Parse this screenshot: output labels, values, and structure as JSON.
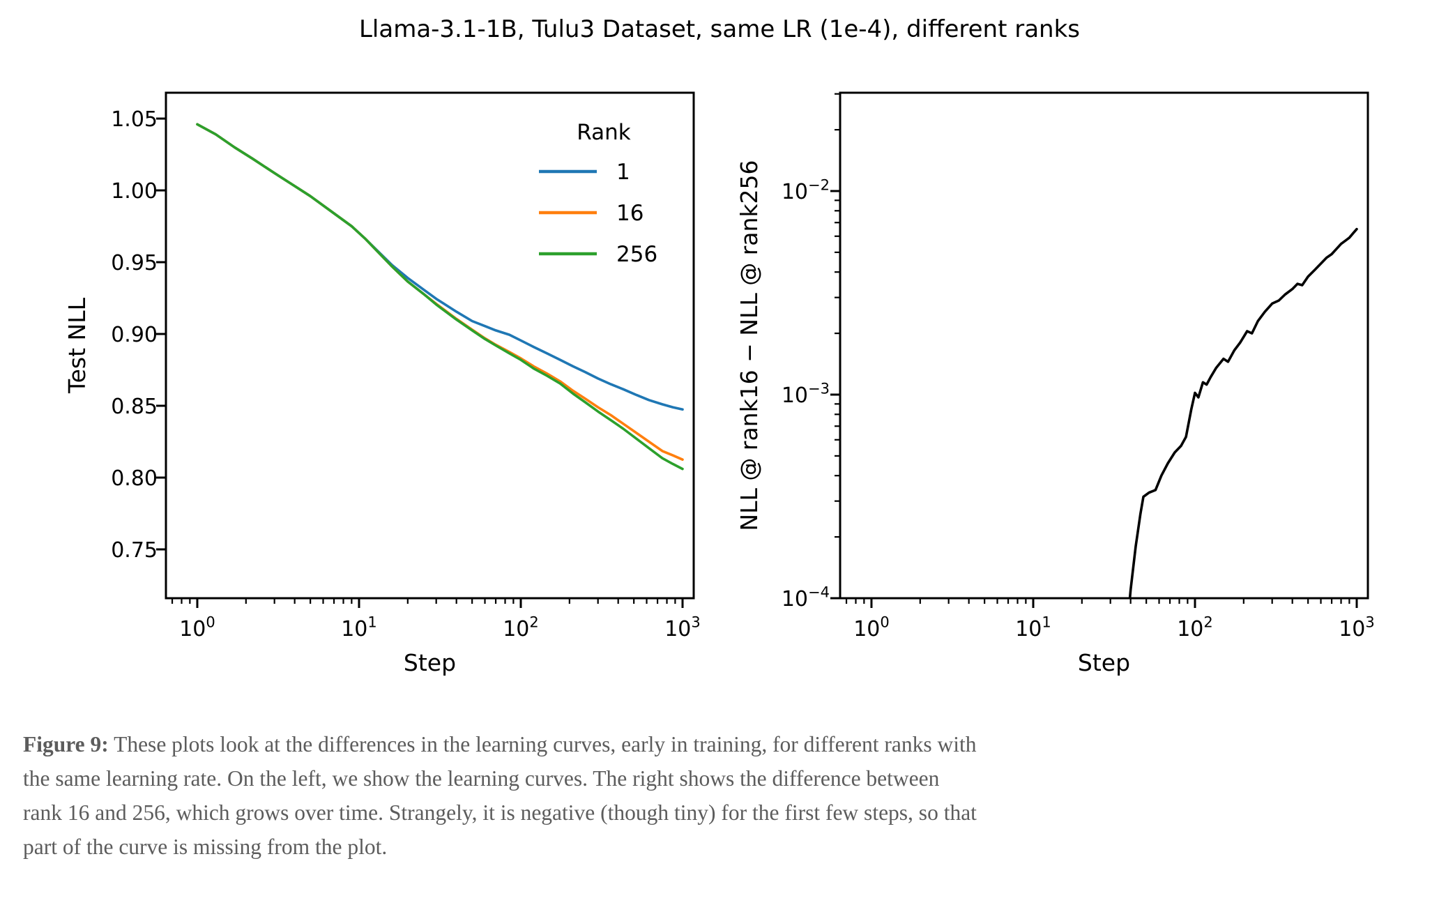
{
  "figure": {
    "title": "Llama-3.1-1B, Tulu3 Dataset, same LR (1e-4), different ranks",
    "caption": {
      "label": "Figure 9:",
      "lines": [
        "These plots look at the differences in the learning curves, early in training, for different ranks with",
        "the same learning rate. On the left, we show the learning curves. The right shows the difference between",
        "rank 16 and 256, which grows over time. Strangely, it is negative (though tiny) for the first few steps, so that",
        "part of the curve is missing from the plot."
      ]
    }
  },
  "colors": {
    "rank1": "#1f77b4",
    "rank16": "#ff7f0e",
    "rank256": "#2ca02c",
    "diff": "#000000",
    "axes": "#000000",
    "caption_text": "#5c5c5c"
  },
  "chart_data": [
    {
      "type": "line",
      "panel": "left",
      "xlabel": "Step",
      "ylabel": "Test NLL",
      "xscale": "log",
      "yscale": "linear",
      "xlim": [
        0.64,
        1172
      ],
      "ylim": [
        0.716,
        1.068
      ],
      "grid": false,
      "xticks": {
        "values": [
          1,
          10,
          100,
          1000
        ],
        "labels": [
          "10^0",
          "10^1",
          "10^2",
          "10^3"
        ]
      },
      "yticks": {
        "values": [
          1.05,
          1.0,
          0.95,
          0.9,
          0.85,
          0.8,
          0.75
        ],
        "labels": [
          "1.05",
          "1.00",
          "0.95",
          "0.90",
          "0.85",
          "0.80",
          "0.75"
        ]
      },
      "legend": {
        "title": "Rank",
        "position": "upper right",
        "entries": [
          "1",
          "16",
          "256"
        ]
      },
      "series": [
        {
          "name": "1",
          "color_key": "rank1",
          "x": [
            1,
            1.3,
            1.7,
            2.2,
            3,
            4,
            5,
            7,
            9,
            11,
            13,
            16,
            20,
            25,
            30,
            40,
            50,
            60,
            70,
            85,
            100,
            120,
            145,
            175,
            210,
            250,
            300,
            360,
            430,
            520,
            620,
            750,
            870,
            1000
          ],
          "y": [
            1.046,
            1.039,
            1.03,
            1.022,
            1.012,
            1.003,
            0.996,
            0.984,
            0.975,
            0.966,
            0.958,
            0.948,
            0.939,
            0.931,
            0.9245,
            0.9155,
            0.909,
            0.9055,
            0.9025,
            0.8995,
            0.8955,
            0.891,
            0.8865,
            0.882,
            0.8775,
            0.8735,
            0.869,
            0.865,
            0.8615,
            0.8575,
            0.854,
            0.851,
            0.849,
            0.8475
          ]
        },
        {
          "name": "16",
          "color_key": "rank16",
          "x": [
            1,
            1.3,
            1.7,
            2.2,
            3,
            4,
            5,
            7,
            9,
            11,
            13,
            16,
            20,
            25,
            30,
            40,
            50,
            60,
            70,
            85,
            100,
            120,
            145,
            175,
            210,
            250,
            300,
            360,
            430,
            520,
            620,
            750,
            870,
            1000
          ],
          "y": [
            1.046,
            1.039,
            1.03,
            1.022,
            1.012,
            1.003,
            0.996,
            0.984,
            0.975,
            0.966,
            0.9575,
            0.947,
            0.9365,
            0.928,
            0.921,
            0.9105,
            0.903,
            0.897,
            0.8925,
            0.8875,
            0.883,
            0.8775,
            0.8725,
            0.867,
            0.8605,
            0.855,
            0.849,
            0.8435,
            0.8375,
            0.831,
            0.825,
            0.8185,
            0.8155,
            0.8125
          ]
        },
        {
          "name": "256",
          "color_key": "rank256",
          "x": [
            1,
            1.3,
            1.7,
            2.2,
            3,
            4,
            5,
            7,
            9,
            11,
            13,
            16,
            20,
            25,
            30,
            40,
            50,
            60,
            70,
            85,
            100,
            120,
            145,
            175,
            210,
            250,
            300,
            360,
            430,
            520,
            620,
            750,
            870,
            1000
          ],
          "y": [
            1.046,
            1.039,
            1.03,
            1.022,
            1.012,
            1.003,
            0.996,
            0.984,
            0.975,
            0.966,
            0.9575,
            0.947,
            0.9365,
            0.928,
            0.9205,
            0.91,
            0.9025,
            0.8965,
            0.892,
            0.8865,
            0.882,
            0.876,
            0.871,
            0.8655,
            0.8585,
            0.8525,
            0.846,
            0.84,
            0.834,
            0.827,
            0.8205,
            0.8135,
            0.8095,
            0.806
          ]
        }
      ]
    },
    {
      "type": "line",
      "panel": "right",
      "xlabel": "Step",
      "ylabel": "NLL @ rank16 − NLL @ rank256",
      "xscale": "log",
      "yscale": "log",
      "xlim": [
        0.64,
        1172
      ],
      "ylim": [
        0.0001,
        0.0304
      ],
      "grid": false,
      "xticks": {
        "values": [
          1,
          10,
          100,
          1000
        ],
        "labels": [
          "10^0",
          "10^1",
          "10^2",
          "10^3"
        ]
      },
      "yticks": {
        "values": [
          0.01,
          0.001,
          0.0001
        ],
        "labels": [
          "10^-2",
          "10^-3",
          "10^-4"
        ]
      },
      "legend": null,
      "series": [
        {
          "name": "NLL difference (rank16 − rank256)",
          "color_key": "diff",
          "x": [
            38,
            40,
            43,
            46,
            48,
            52,
            57,
            62,
            68,
            75,
            82,
            88,
            95,
            100,
            105,
            112,
            118,
            125,
            135,
            150,
            160,
            175,
            190,
            210,
            225,
            245,
            270,
            300,
            330,
            360,
            400,
            430,
            460,
            500,
            550,
            600,
            650,
            700,
            750,
            800,
            850,
            900,
            950,
            1000
          ],
          "y": [
            7e-05,
            0.00011,
            0.00018,
            0.00026,
            0.000315,
            0.00033,
            0.00034,
            0.0004,
            0.00046,
            0.00052,
            0.00056,
            0.00062,
            0.00085,
            0.00102,
            0.00097,
            0.00115,
            0.00112,
            0.00122,
            0.00135,
            0.0015,
            0.00145,
            0.00165,
            0.0018,
            0.00205,
            0.002,
            0.0023,
            0.00255,
            0.0028,
            0.0029,
            0.0031,
            0.0033,
            0.0035,
            0.00345,
            0.0038,
            0.0041,
            0.0044,
            0.0047,
            0.0049,
            0.0052,
            0.0055,
            0.0057,
            0.0059,
            0.0062,
            0.0065
          ]
        }
      ]
    }
  ]
}
